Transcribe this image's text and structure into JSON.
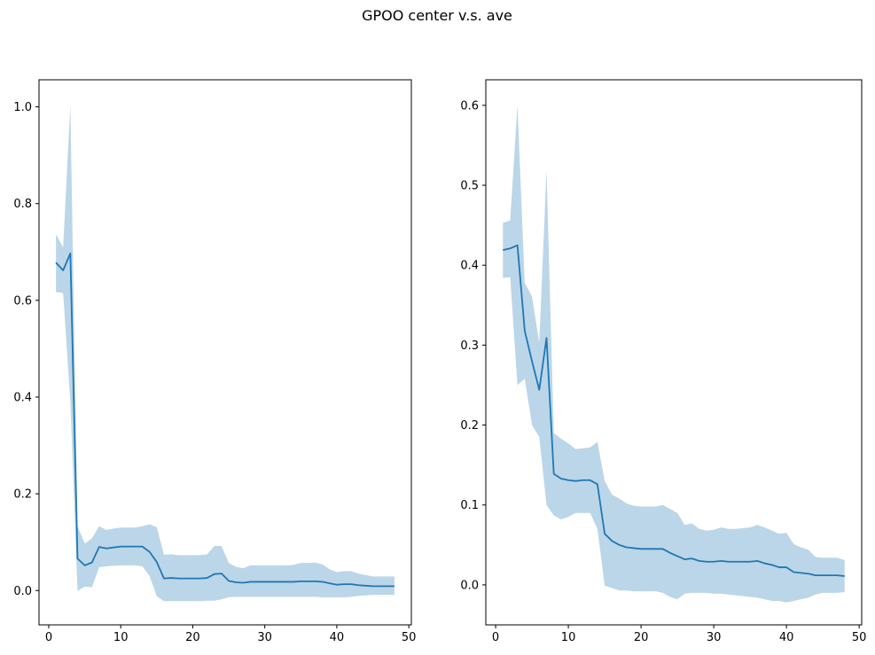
{
  "figure": {
    "title": "GPOO center v.s. ave"
  },
  "chart_data": [
    {
      "type": "line",
      "title": "",
      "xlabel": "",
      "ylabel": "",
      "xlim": [
        -1.35,
        50.35
      ],
      "ylim": [
        -0.071,
        1.056
      ],
      "xticks": [
        0,
        10,
        20,
        30,
        40,
        50
      ],
      "yticks": [
        0.0,
        0.2,
        0.4,
        0.6,
        0.8,
        1.0
      ],
      "ytick_labels": [
        "0.0",
        "0.2",
        "0.4",
        "0.6",
        "0.8",
        "1.0"
      ],
      "grid": false,
      "line_color": "#1f77b4",
      "band_color": "#1f77b4",
      "band_opacity": 0.3,
      "x": [
        1,
        2,
        3,
        4,
        5,
        6,
        7,
        8,
        9,
        10,
        11,
        12,
        13,
        14,
        15,
        16,
        17,
        18,
        19,
        20,
        21,
        22,
        23,
        24,
        25,
        26,
        27,
        28,
        29,
        30,
        31,
        32,
        33,
        34,
        35,
        36,
        37,
        38,
        39,
        40,
        41,
        42,
        43,
        44,
        45,
        46,
        47,
        48
      ],
      "series": [
        {
          "values": [
            0.678,
            0.662,
            0.697,
            0.066,
            0.052,
            0.058,
            0.09,
            0.087,
            0.089,
            0.091,
            0.091,
            0.091,
            0.091,
            0.08,
            0.059,
            0.025,
            0.026,
            0.025,
            0.025,
            0.025,
            0.025,
            0.026,
            0.034,
            0.035,
            0.02,
            0.017,
            0.016,
            0.018,
            0.018,
            0.018,
            0.018,
            0.018,
            0.018,
            0.018,
            0.019,
            0.019,
            0.019,
            0.018,
            0.015,
            0.012,
            0.013,
            0.013,
            0.011,
            0.01,
            0.009,
            0.009,
            0.009,
            0.009
          ],
          "lower": [
            0.617,
            0.615,
            0.39,
            -0.001,
            0.008,
            0.007,
            0.048,
            0.05,
            0.051,
            0.052,
            0.052,
            0.052,
            0.05,
            0.03,
            -0.012,
            -0.022,
            -0.022,
            -0.022,
            -0.022,
            -0.022,
            -0.022,
            -0.021,
            -0.021,
            -0.018,
            -0.014,
            -0.013,
            -0.013,
            -0.013,
            -0.013,
            -0.013,
            -0.013,
            -0.013,
            -0.013,
            -0.013,
            -0.013,
            -0.013,
            -0.013,
            -0.014,
            -0.014,
            -0.014,
            -0.014,
            -0.013,
            -0.011,
            -0.01,
            -0.009,
            -0.009,
            -0.009,
            -0.009
          ],
          "upper": [
            0.737,
            0.709,
            1.004,
            0.133,
            0.097,
            0.108,
            0.133,
            0.125,
            0.128,
            0.13,
            0.13,
            0.13,
            0.133,
            0.137,
            0.131,
            0.074,
            0.075,
            0.073,
            0.073,
            0.073,
            0.073,
            0.075,
            0.092,
            0.092,
            0.057,
            0.049,
            0.046,
            0.052,
            0.052,
            0.052,
            0.052,
            0.052,
            0.052,
            0.053,
            0.057,
            0.057,
            0.058,
            0.054,
            0.044,
            0.038,
            0.04,
            0.04,
            0.035,
            0.032,
            0.029,
            0.029,
            0.029,
            0.029
          ]
        }
      ]
    },
    {
      "type": "line",
      "title": "",
      "xlabel": "",
      "ylabel": "",
      "xlim": [
        -1.35,
        50.35
      ],
      "ylim": [
        -0.05,
        0.632
      ],
      "xticks": [
        0,
        10,
        20,
        30,
        40,
        50
      ],
      "yticks": [
        0.0,
        0.1,
        0.2,
        0.3,
        0.4,
        0.5,
        0.6
      ],
      "ytick_labels": [
        "0.0",
        "0.1",
        "0.2",
        "0.3",
        "0.4",
        "0.5",
        "0.6"
      ],
      "grid": false,
      "line_color": "#1f77b4",
      "band_color": "#1f77b4",
      "band_opacity": 0.3,
      "x": [
        1,
        2,
        3,
        4,
        5,
        6,
        7,
        8,
        9,
        10,
        11,
        12,
        13,
        14,
        15,
        16,
        17,
        18,
        19,
        20,
        21,
        22,
        23,
        24,
        25,
        26,
        27,
        28,
        29,
        30,
        31,
        32,
        33,
        34,
        35,
        36,
        37,
        38,
        39,
        40,
        41,
        42,
        43,
        44,
        45,
        46,
        47,
        48
      ],
      "series": [
        {
          "values": [
            0.419,
            0.421,
            0.425,
            0.318,
            0.28,
            0.244,
            0.309,
            0.139,
            0.133,
            0.131,
            0.13,
            0.131,
            0.131,
            0.126,
            0.064,
            0.055,
            0.05,
            0.047,
            0.046,
            0.045,
            0.045,
            0.045,
            0.045,
            0.04,
            0.036,
            0.032,
            0.033,
            0.03,
            0.029,
            0.029,
            0.03,
            0.029,
            0.029,
            0.029,
            0.029,
            0.03,
            0.027,
            0.025,
            0.022,
            0.022,
            0.016,
            0.015,
            0.014,
            0.012,
            0.012,
            0.012,
            0.012,
            0.011
          ],
          "lower": [
            0.384,
            0.385,
            0.25,
            0.258,
            0.2,
            0.185,
            0.1,
            0.087,
            0.082,
            0.085,
            0.09,
            0.09,
            0.09,
            0.07,
            -0.001,
            -0.004,
            -0.007,
            -0.007,
            -0.008,
            -0.008,
            -0.008,
            -0.008,
            -0.01,
            -0.015,
            -0.018,
            -0.011,
            -0.01,
            -0.01,
            -0.01,
            -0.011,
            -0.011,
            -0.012,
            -0.013,
            -0.014,
            -0.015,
            -0.016,
            -0.018,
            -0.02,
            -0.02,
            -0.022,
            -0.02,
            -0.018,
            -0.016,
            -0.012,
            -0.01,
            -0.01,
            -0.01,
            -0.009
          ],
          "upper": [
            0.453,
            0.456,
            0.6,
            0.378,
            0.361,
            0.303,
            0.519,
            0.19,
            0.183,
            0.177,
            0.17,
            0.171,
            0.172,
            0.179,
            0.13,
            0.113,
            0.108,
            0.102,
            0.099,
            0.098,
            0.098,
            0.098,
            0.1,
            0.095,
            0.09,
            0.075,
            0.077,
            0.07,
            0.068,
            0.069,
            0.072,
            0.07,
            0.07,
            0.071,
            0.072,
            0.075,
            0.072,
            0.068,
            0.064,
            0.065,
            0.051,
            0.047,
            0.044,
            0.035,
            0.034,
            0.034,
            0.034,
            0.031
          ]
        }
      ]
    }
  ]
}
